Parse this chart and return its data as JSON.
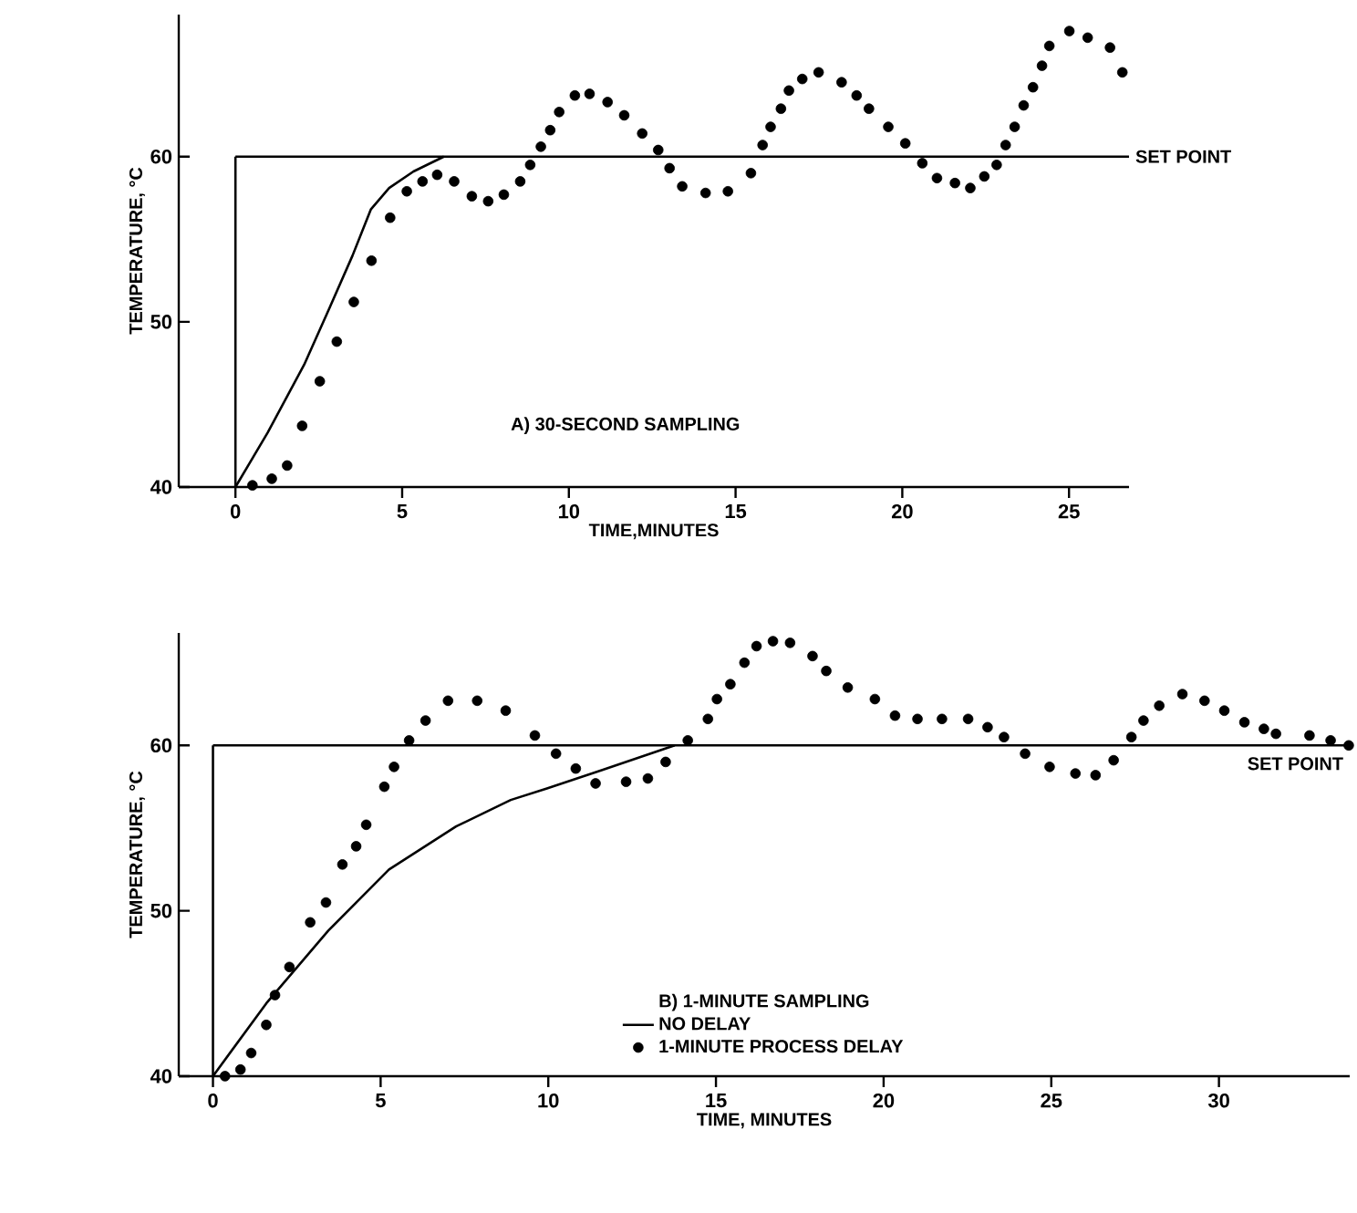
{
  "chart_data": [
    {
      "type": "line",
      "xlabel": "TIME,MINUTES",
      "ylabel": "TEMPERATURE, °C",
      "xlim": [
        -1.7,
        26.8
      ],
      "ylim": [
        40,
        68.6
      ],
      "xticks": [
        0,
        5,
        10,
        15,
        20,
        25
      ],
      "yticks": [
        40,
        50,
        60
      ],
      "annotations": [
        "A) 30-SECOND SAMPLING"
      ],
      "ref_lines": [
        {
          "axis": "y",
          "value": 60,
          "label": "SET POINT"
        },
        {
          "axis": "x",
          "value": 0
        }
      ],
      "series": [
        {
          "type": "line",
          "color": "#000000",
          "x": [
            0,
            0.97,
            2.06,
            2.79,
            3.51,
            4.06,
            4.61,
            5.34,
            6.25
          ],
          "values": [
            40,
            43.3,
            47.4,
            50.7,
            54.0,
            56.8,
            58.1,
            59.1,
            60.0
          ]
        },
        {
          "type": "scatter",
          "color": "#000000",
          "x": [
            0.51,
            1.09,
            1.55,
            2.0,
            2.53,
            3.04,
            3.55,
            4.08,
            4.64,
            5.14,
            5.61,
            6.05,
            6.56,
            7.09,
            7.58,
            8.05,
            8.54,
            8.84,
            9.16,
            9.44,
            9.71,
            10.18,
            10.62,
            11.16,
            11.66,
            12.2,
            12.68,
            13.02,
            13.4,
            14.1,
            14.77,
            15.46,
            15.81,
            16.05,
            16.36,
            16.6,
            17.0,
            17.49,
            18.18,
            18.63,
            19.0,
            19.58,
            20.09,
            20.6,
            21.04,
            21.58,
            22.04,
            22.46,
            22.83,
            23.1,
            23.37,
            23.64,
            23.92,
            24.19,
            24.41,
            25.01,
            25.56,
            26.23,
            26.6
          ],
          "values": [
            40.1,
            40.5,
            41.3,
            43.7,
            46.4,
            48.8,
            51.2,
            53.7,
            56.3,
            57.9,
            58.5,
            58.9,
            58.5,
            57.6,
            57.3,
            57.7,
            58.5,
            59.5,
            60.6,
            61.6,
            62.7,
            63.7,
            63.8,
            63.3,
            62.5,
            61.4,
            60.4,
            59.3,
            58.2,
            57.8,
            57.9,
            59.0,
            60.7,
            61.8,
            62.9,
            64.0,
            64.7,
            65.1,
            64.5,
            63.7,
            62.9,
            61.8,
            60.8,
            59.6,
            58.7,
            58.4,
            58.1,
            58.8,
            59.5,
            60.7,
            61.8,
            63.1,
            64.2,
            65.5,
            66.7,
            67.6,
            67.2,
            66.6,
            65.1
          ]
        }
      ]
    },
    {
      "type": "line",
      "xlabel": "TIME, MINUTES",
      "ylabel": "TEMPERATURE, °C",
      "xlim": [
        -1.02,
        33.9
      ],
      "ylim": [
        40,
        66.8
      ],
      "xticks": [
        0,
        5,
        10,
        15,
        20,
        25,
        30
      ],
      "yticks": [
        40,
        50,
        60
      ],
      "legend": "bottom",
      "legend_title": "B) 1-MINUTE SAMPLING",
      "ref_lines": [
        {
          "axis": "y",
          "value": 60,
          "label": "SET POINT"
        },
        {
          "axis": "x",
          "value": 0
        }
      ],
      "series": [
        {
          "type": "line",
          "name": "NO DELAY",
          "color": "#000000",
          "x": [
            0,
            1.59,
            3.44,
            5.25,
            7.25,
            8.88,
            9.96,
            11.59,
            13.77
          ],
          "values": [
            40,
            44.4,
            48.8,
            52.5,
            55.1,
            56.7,
            57.4,
            58.5,
            60.0
          ]
        },
        {
          "type": "scatter",
          "name": "1-MINUTE PROCESS DELAY",
          "color": "#000000",
          "x": [
            0.36,
            0.82,
            1.14,
            1.59,
            1.85,
            2.28,
            2.9,
            3.37,
            3.86,
            4.27,
            4.57,
            5.11,
            5.4,
            5.85,
            6.34,
            7.01,
            7.88,
            8.73,
            9.6,
            10.23,
            10.82,
            11.41,
            12.32,
            12.97,
            13.5,
            14.16,
            14.76,
            15.03,
            15.43,
            15.85,
            16.21,
            16.7,
            17.21,
            17.88,
            18.29,
            18.93,
            19.74,
            20.34,
            21.01,
            21.74,
            22.52,
            23.1,
            23.59,
            24.22,
            24.95,
            25.72,
            26.32,
            26.86,
            27.39,
            27.75,
            28.22,
            28.91,
            29.57,
            30.16,
            30.76,
            31.34,
            31.7,
            32.7,
            33.33,
            33.87
          ],
          "values": [
            40.0,
            40.4,
            41.4,
            43.1,
            44.9,
            46.6,
            49.3,
            50.5,
            52.8,
            53.9,
            55.2,
            57.5,
            58.7,
            60.3,
            61.5,
            62.7,
            62.7,
            62.1,
            60.6,
            59.5,
            58.6,
            57.7,
            57.8,
            58.0,
            59.0,
            60.3,
            61.6,
            62.8,
            63.7,
            65.0,
            66.0,
            66.3,
            66.2,
            65.4,
            64.5,
            63.5,
            62.8,
            61.8,
            61.6,
            61.6,
            61.6,
            61.1,
            60.5,
            59.5,
            58.7,
            58.3,
            58.2,
            59.1,
            60.5,
            61.5,
            62.4,
            63.1,
            62.7,
            62.1,
            61.4,
            61.0,
            60.7,
            60.6,
            60.3,
            60.0
          ]
        }
      ]
    }
  ]
}
